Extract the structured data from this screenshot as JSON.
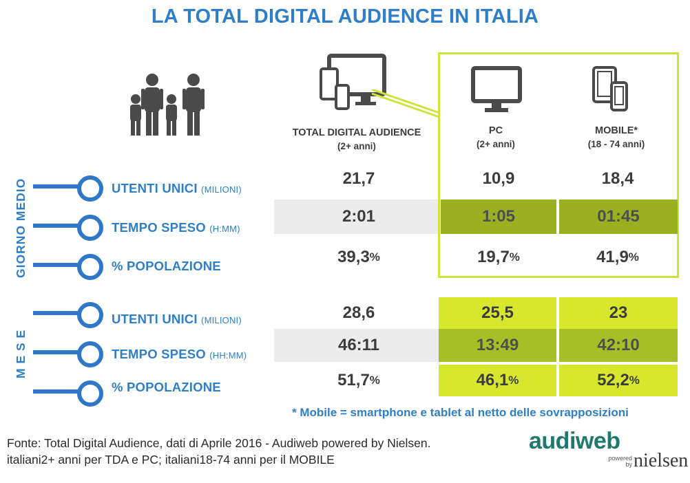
{
  "title": "LA TOTAL DIGITAL AUDIENCE IN ITALIA",
  "columns": {
    "tda": {
      "label": "TOTAL DIGITAL AUDIENCE",
      "sub": "(2+ anni)"
    },
    "pc": {
      "label": "PC",
      "sub": "(2+ anni)"
    },
    "mobile": {
      "label": "MOBILE*",
      "sub": "(18 - 74 anni)"
    }
  },
  "sections": {
    "giorno_medio": "GIORNO MEDIO",
    "mese": "M E S E"
  },
  "metrics": {
    "utenti": {
      "label": "UTENTI UNICI",
      "unit": "(MILIONI)"
    },
    "tempo_day": {
      "label": "TEMPO SPESO",
      "unit": "(H:MM)"
    },
    "tempo_month": {
      "label": "TEMPO SPESO",
      "unit": "(HH:MM)"
    },
    "popolazione": {
      "label": "% POPOLAZIONE"
    }
  },
  "day": {
    "utenti": {
      "tda": "21,7",
      "pc": "10,9",
      "mobile": "18,4"
    },
    "tempo": {
      "tda": "2:01",
      "pc": "1:05",
      "mobile": "01:45"
    },
    "popolazione": {
      "tda": "39,3",
      "pc": "19,7",
      "mobile": "41,9"
    }
  },
  "month": {
    "utenti": {
      "tda": "28,6",
      "pc": "25,5",
      "mobile": "23"
    },
    "tempo": {
      "tda": "46:11",
      "pc": "13:49",
      "mobile": "42:10"
    },
    "popolazione": {
      "tda": "51,7",
      "pc": "46,1",
      "mobile": "52,2"
    }
  },
  "percent_sign": "%",
  "footnote": "* Mobile = smartphone e tablet al netto delle sovrapposizioni",
  "source": {
    "line1": "Fonte: Total Digital Audience, dati di Aprile 2016 - Audiweb powered by Nielsen.",
    "line2": "italiani2+ anni per TDA e PC; italiani18-74 anni per il MOBILE"
  },
  "logo": {
    "audiweb": "audiweb",
    "powered": "powered",
    "by": "by",
    "nielsen": "nielsen"
  },
  "colors": {
    "blue": "#2f7fc8",
    "lime": "#d6e72e",
    "green": "#9ab021",
    "gray_band": "#ececec"
  },
  "icons": [
    "family-icon",
    "multi-device-icon",
    "monitor-icon",
    "mobile-devices-icon"
  ]
}
